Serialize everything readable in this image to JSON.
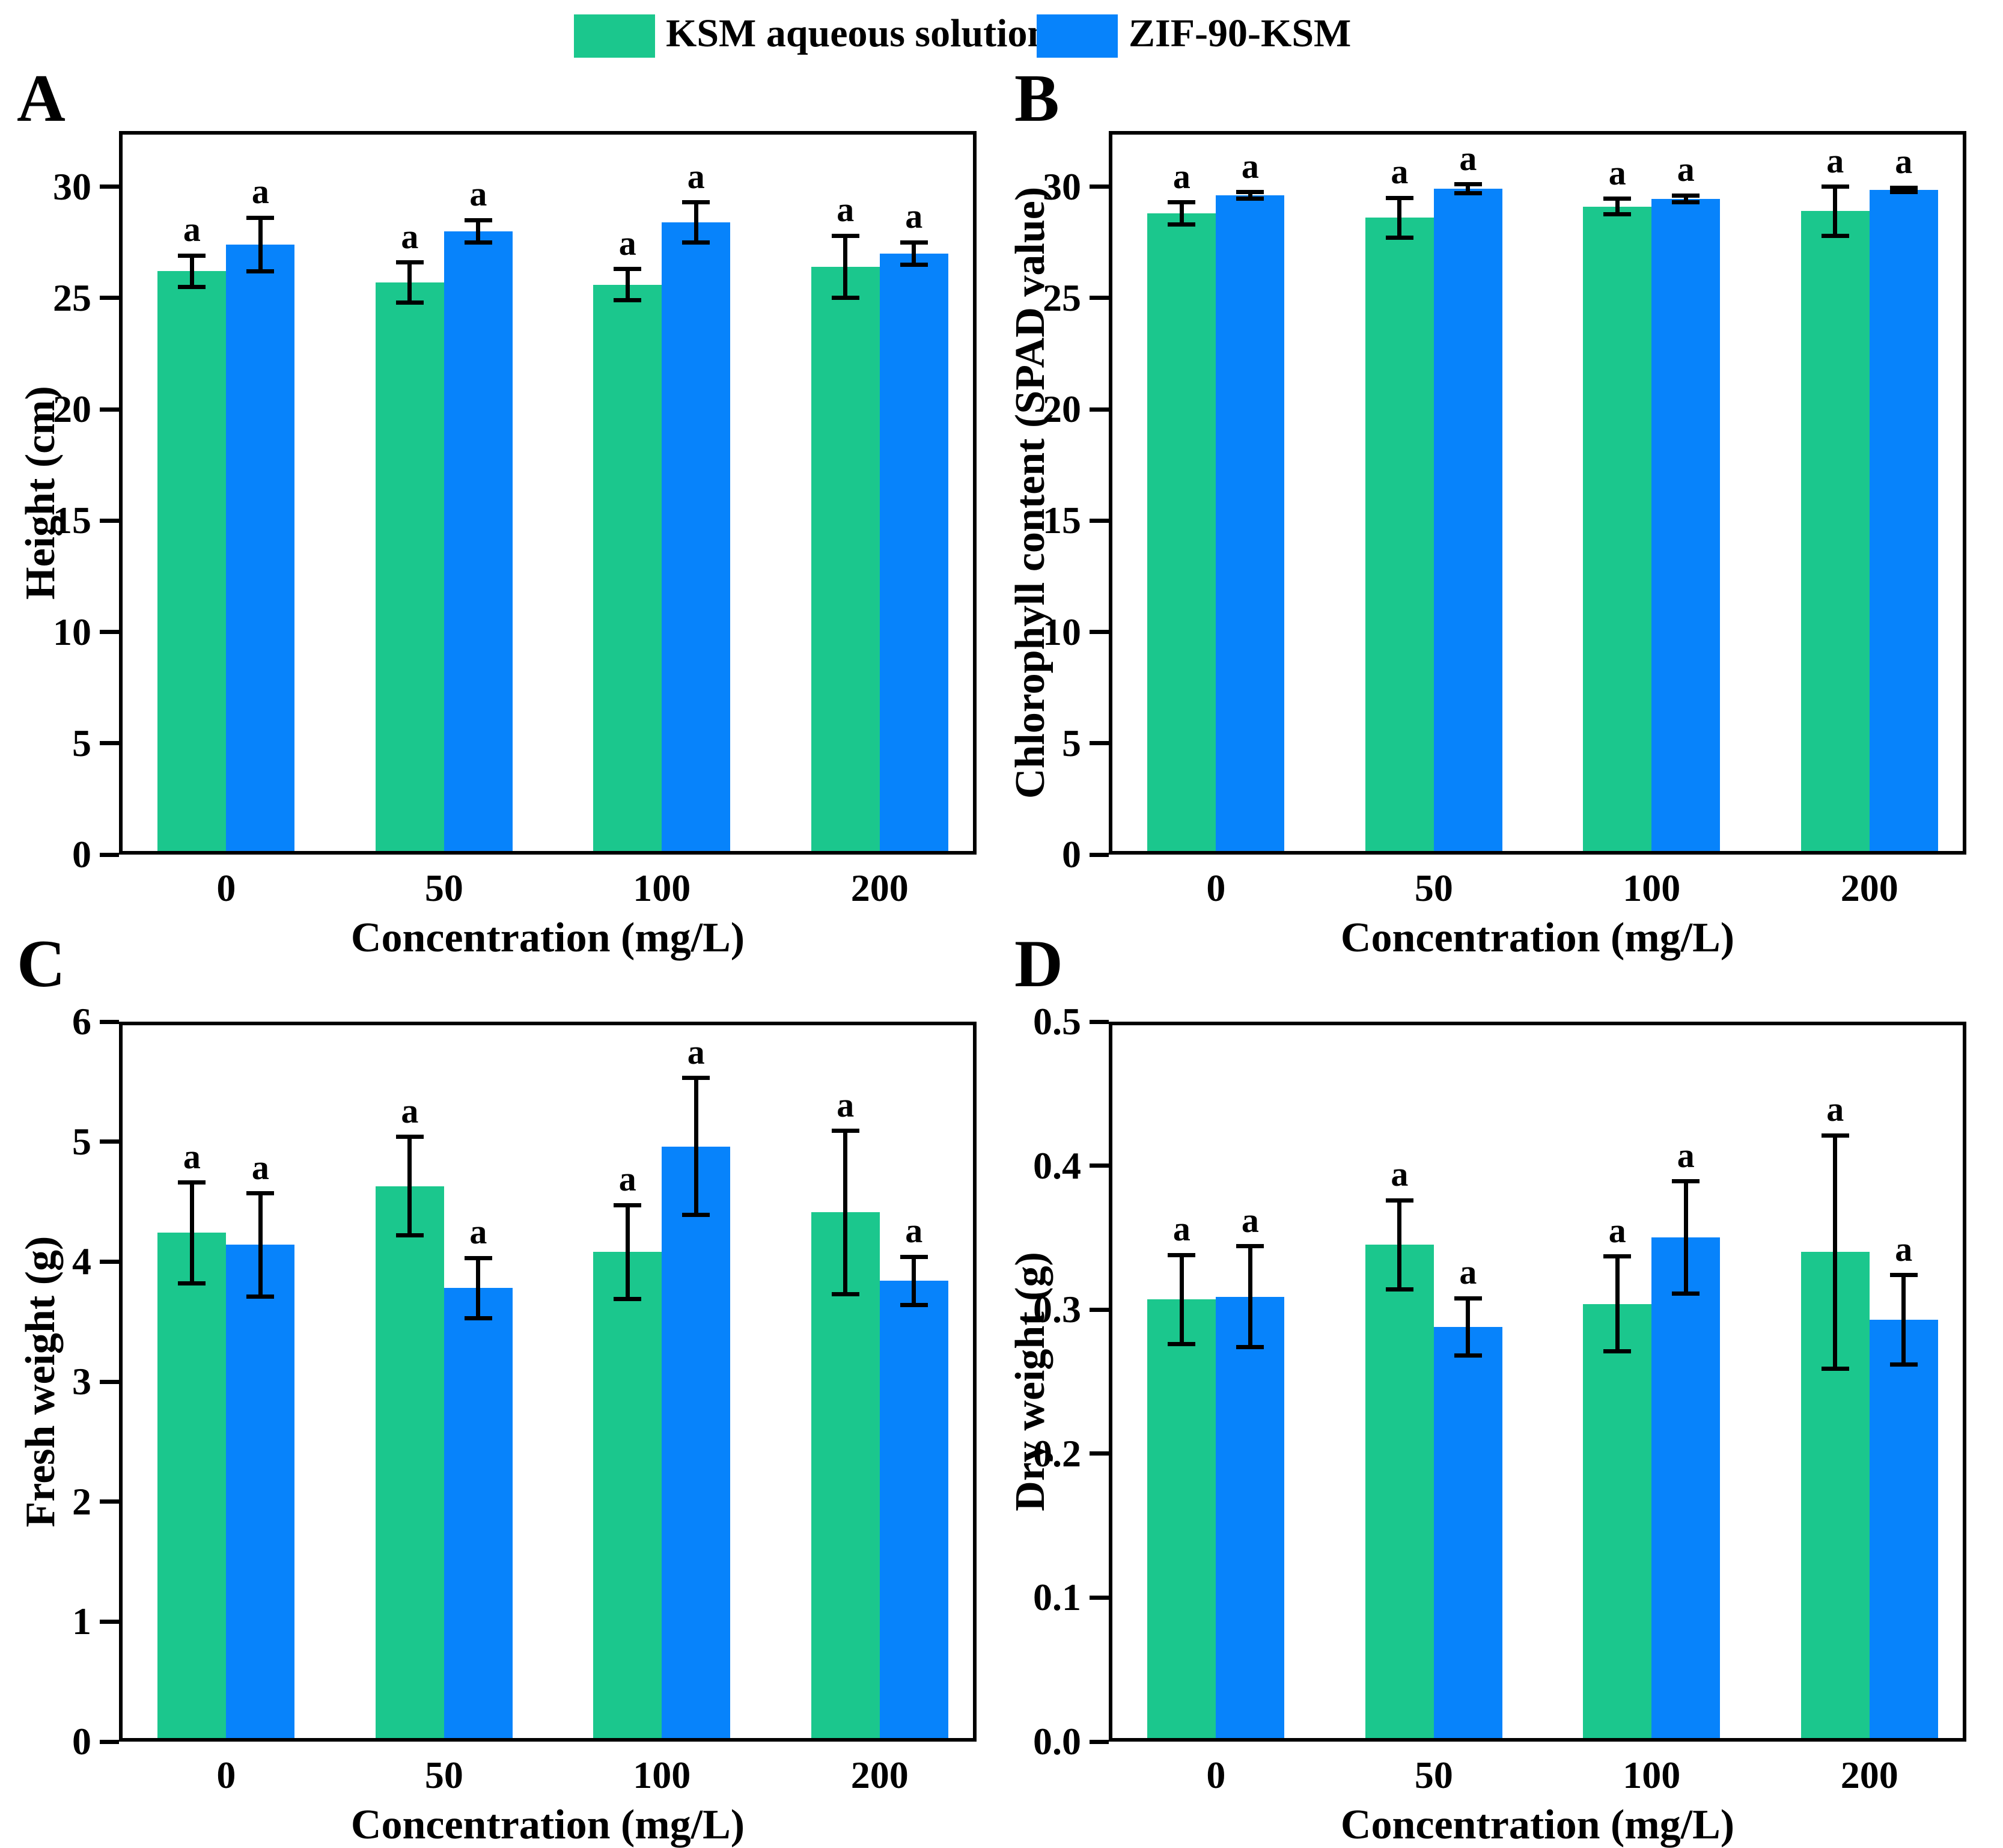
{
  "figure": {
    "background": "#ffffff",
    "sig_label": "a"
  },
  "legend": {
    "items": [
      {
        "label": "KSM aqueous solution",
        "color": "#1BC78D"
      },
      {
        "label": "ZIF-90-KSM",
        "color": "#0783FB"
      }
    ]
  },
  "panel_letters": [
    "A",
    "B",
    "C",
    "D"
  ],
  "chart_data": [
    {
      "panel": "A",
      "type": "bar",
      "title": "",
      "ylabel": "Height (cm)",
      "xlabel": "Concentration (mg/L)",
      "categories": [
        "0",
        "50",
        "100",
        "200"
      ],
      "ylim": [
        0,
        32.5
      ],
      "yticks": [
        0,
        5,
        10,
        15,
        20,
        25,
        30
      ],
      "ytick_labels": [
        "0",
        "5",
        "10",
        "15",
        "20",
        "25",
        "30"
      ],
      "grid": false,
      "legend_position": "top-center-shared",
      "series": [
        {
          "name": "KSM aqueous solution",
          "values": [
            26.2,
            25.7,
            25.6,
            26.4
          ],
          "errors": [
            0.7,
            0.9,
            0.7,
            1.4
          ],
          "sig": [
            "a",
            "a",
            "a",
            "a"
          ]
        },
        {
          "name": "ZIF-90-KSM",
          "values": [
            27.4,
            28.0,
            28.4,
            27.0
          ],
          "errors": [
            1.2,
            0.5,
            0.9,
            0.5
          ],
          "sig": [
            "a",
            "a",
            "a",
            "a"
          ]
        }
      ]
    },
    {
      "panel": "B",
      "type": "bar",
      "title": "",
      "ylabel": "Chlorophyll content (SPAD value)",
      "xlabel": "Concentration (mg/L)",
      "categories": [
        "0",
        "50",
        "100",
        "200"
      ],
      "ylim": [
        0,
        32.5
      ],
      "yticks": [
        0,
        5,
        10,
        15,
        20,
        25,
        30
      ],
      "ytick_labels": [
        "0",
        "5",
        "10",
        "15",
        "20",
        "25",
        "30"
      ],
      "grid": false,
      "legend_position": "top-center-shared",
      "series": [
        {
          "name": "KSM aqueous solution",
          "values": [
            28.8,
            28.6,
            29.1,
            28.9
          ],
          "errors": [
            0.5,
            0.9,
            0.35,
            1.1
          ],
          "sig": [
            "a",
            "a",
            "a",
            "a"
          ]
        },
        {
          "name": "ZIF-90-KSM",
          "values": [
            29.6,
            29.9,
            29.45,
            29.85
          ],
          "errors": [
            0.15,
            0.2,
            0.15,
            0.1
          ],
          "sig": [
            "a",
            "a",
            "a",
            "a"
          ]
        }
      ]
    },
    {
      "panel": "C",
      "type": "bar",
      "title": "",
      "ylabel": "Fresh weight (g)",
      "xlabel": "Concentration (mg/L)",
      "categories": [
        "0",
        "50",
        "100",
        "200"
      ],
      "ylim": [
        0,
        6
      ],
      "yticks": [
        0,
        1,
        2,
        3,
        4,
        5,
        6
      ],
      "ytick_labels": [
        "0",
        "1",
        "2",
        "3",
        "4",
        "5",
        "6"
      ],
      "grid": false,
      "legend_position": "top-center-shared",
      "series": [
        {
          "name": "KSM aqueous solution",
          "values": [
            4.24,
            4.63,
            4.08,
            4.41
          ],
          "errors": [
            0.42,
            0.41,
            0.39,
            0.68
          ],
          "sig": [
            "a",
            "a",
            "a",
            "a"
          ]
        },
        {
          "name": "ZIF-90-KSM",
          "values": [
            4.14,
            3.78,
            4.96,
            3.84
          ],
          "errors": [
            0.43,
            0.25,
            0.57,
            0.2
          ],
          "sig": [
            "a",
            "a",
            "a",
            "a"
          ]
        }
      ]
    },
    {
      "panel": "D",
      "type": "bar",
      "title": "",
      "ylabel": "Dry weight (g)",
      "xlabel": "Concentration (mg/L)",
      "categories": [
        "0",
        "50",
        "100",
        "200"
      ],
      "ylim": [
        0,
        0.5
      ],
      "yticks": [
        0,
        0.1,
        0.2,
        0.3,
        0.4,
        0.5
      ],
      "ytick_labels": [
        "0.0",
        "0.1",
        "0.2",
        "0.3",
        "0.4",
        "0.5"
      ],
      "grid": false,
      "legend_position": "top-center-shared",
      "series": [
        {
          "name": "KSM aqueous solution",
          "values": [
            0.307,
            0.345,
            0.304,
            0.34
          ],
          "errors": [
            0.031,
            0.031,
            0.033,
            0.081
          ],
          "sig": [
            "a",
            "a",
            "a",
            "a"
          ]
        },
        {
          "name": "ZIF-90-KSM",
          "values": [
            0.309,
            0.288,
            0.35,
            0.293
          ],
          "errors": [
            0.035,
            0.02,
            0.039,
            0.031
          ],
          "sig": [
            "a",
            "a",
            "a",
            "a"
          ]
        }
      ]
    }
  ]
}
